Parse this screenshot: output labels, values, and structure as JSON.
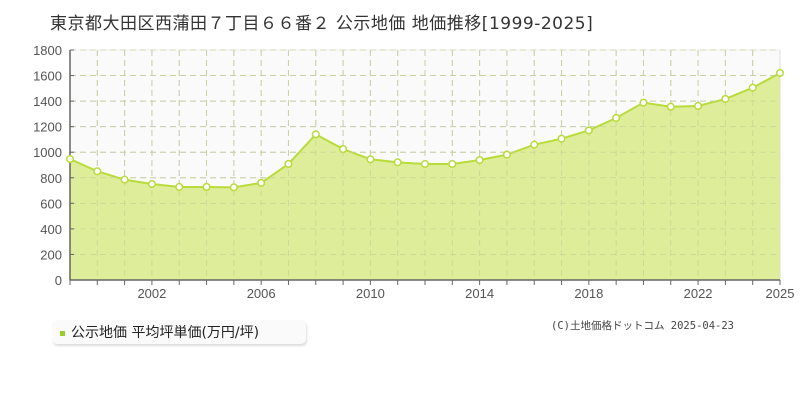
{
  "title": "東京都大田区西蒲田７丁目６６番２ 公示地価 地価推移[1999-2025]",
  "legend": {
    "label": "公示地価 平均坪単価(万円/坪)",
    "color": "#9acd32"
  },
  "copyright": "(C)土地価格ドットコム 2025-04-23",
  "colors": {
    "fill": "#dcec94",
    "line": "#b8dc3c",
    "plot_bg": "#fafafa",
    "grid": "#cccccc",
    "axis": "#666666"
  },
  "chart_data": {
    "type": "area",
    "title": "東京都大田区西蒲田７丁目６６番２ 公示地価 地価推移[1999-2025]",
    "xlabel": "",
    "ylabel": "",
    "ylim": [
      0,
      1800
    ],
    "yticks": [
      0,
      200,
      400,
      600,
      800,
      1000,
      1200,
      1400,
      1600,
      1800
    ],
    "xtick_labels": [
      "2002",
      "2006",
      "2010",
      "2014",
      "2018",
      "2022",
      "2025"
    ],
    "grid": true,
    "legend_position": "bottom-left",
    "x": [
      1999,
      2000,
      2001,
      2002,
      2003,
      2004,
      2005,
      2006,
      2007,
      2008,
      2009,
      2010,
      2011,
      2012,
      2013,
      2014,
      2015,
      2016,
      2017,
      2018,
      2019,
      2020,
      2021,
      2022,
      2023,
      2024,
      2025
    ],
    "series": [
      {
        "name": "公示地価 平均坪単価(万円/坪)",
        "values": [
          947,
          851,
          785,
          751,
          728,
          728,
          725,
          760,
          908,
          1140,
          1025,
          945,
          921,
          908,
          908,
          939,
          981,
          1059,
          1106,
          1171,
          1268,
          1388,
          1356,
          1362,
          1417,
          1505,
          1620
        ]
      }
    ]
  }
}
